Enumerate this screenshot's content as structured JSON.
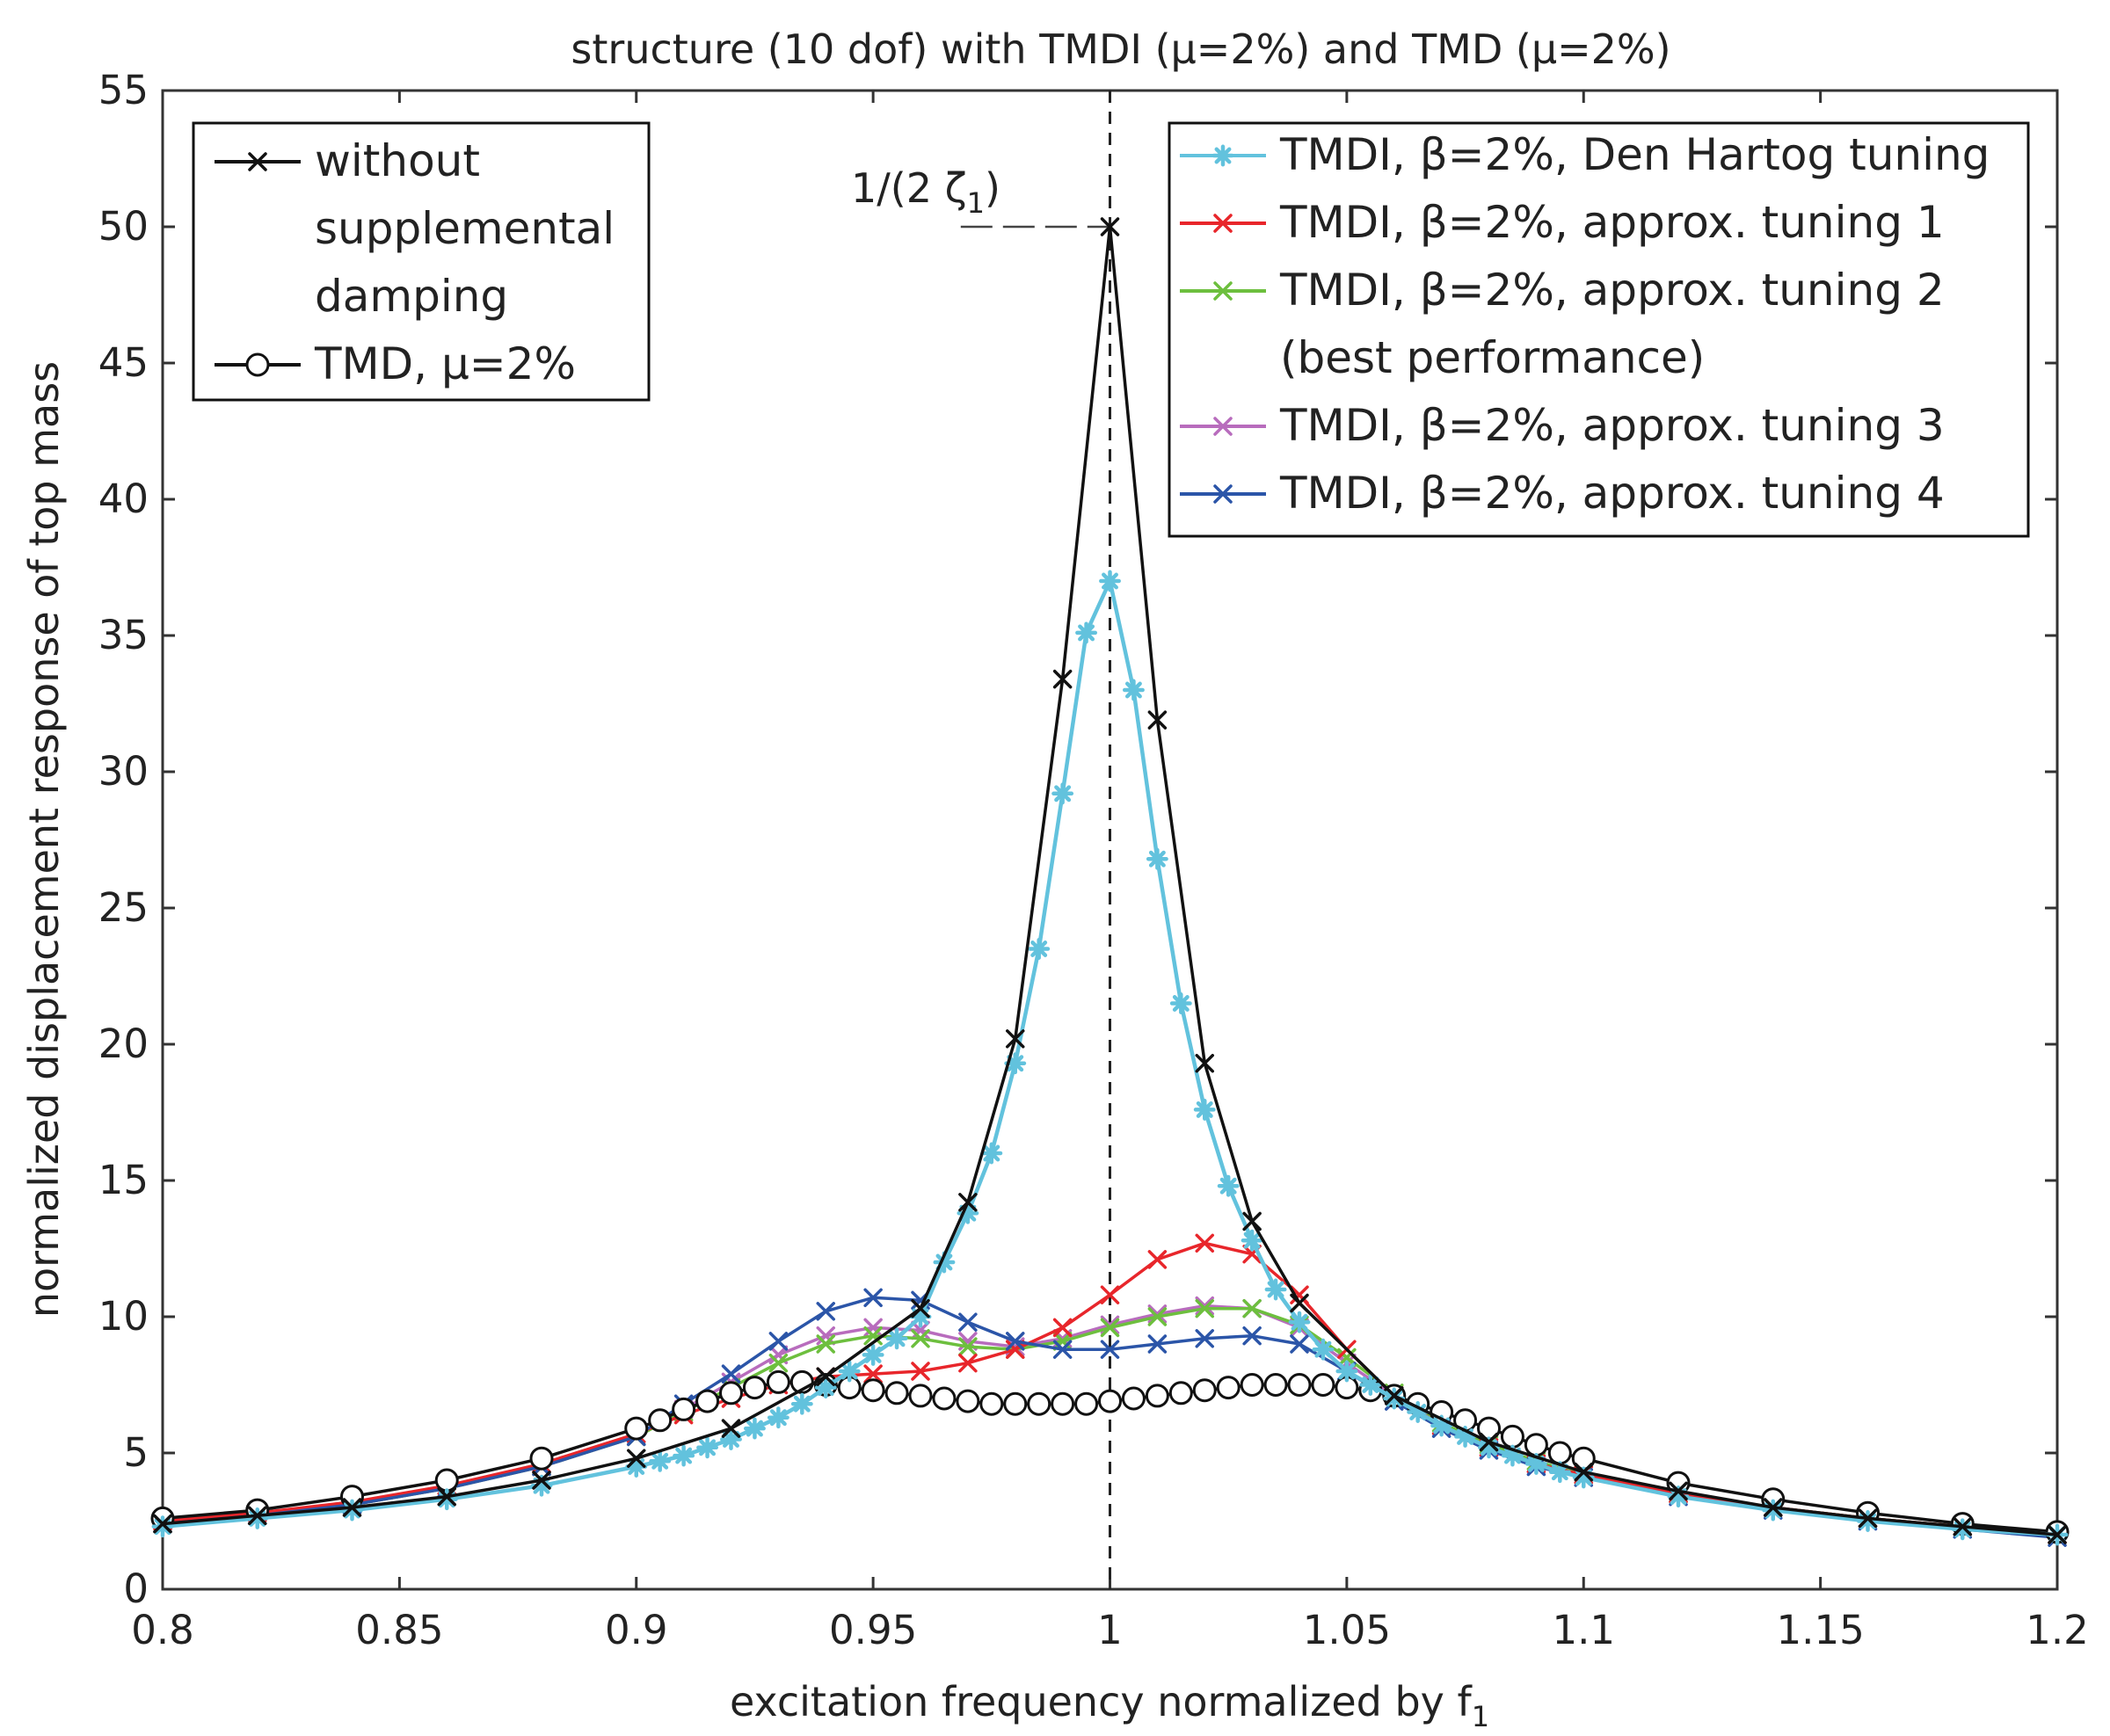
{
  "chart_data": {
    "type": "line",
    "title": "structure (10 dof) with TMDI (μ=2%) and TMD (μ=2%)",
    "xlabel": "excitation frequency normalized by f",
    "xlabel_subscript": "1",
    "ylabel": "normalized displacement response of top mass",
    "xlim": [
      0.8,
      1.2
    ],
    "ylim": [
      0,
      55
    ],
    "xticks": [
      "0.8",
      "0.85",
      "0.9",
      "0.95",
      "1",
      "1.05",
      "1.1",
      "1.15",
      "1.2"
    ],
    "yticks": [
      "0",
      "5",
      "10",
      "15",
      "20",
      "25",
      "30",
      "35",
      "40",
      "45",
      "50",
      "55"
    ],
    "annotation": {
      "text": "1/(2 ζ",
      "subscript": "1",
      "suffix": ")",
      "x": 1.0,
      "y": 50
    },
    "vertical_reference_x": 1.0,
    "legend_left": [
      {
        "series_index": 0,
        "lines": [
          "without",
          "supplemental",
          "damping"
        ]
      },
      {
        "series_index": 1,
        "lines": [
          "TMD, μ=2%"
        ]
      }
    ],
    "legend_right": [
      {
        "series_index": 2,
        "lines": [
          "TMDI, β=2%, Den Hartog tuning"
        ]
      },
      {
        "series_index": 3,
        "lines": [
          "TMDI, β=2%, approx. tuning 1"
        ]
      },
      {
        "series_index": 4,
        "lines": [
          "TMDI, β=2%, approx. tuning 2",
          "(best performance)"
        ]
      },
      {
        "series_index": 5,
        "lines": [
          "TMDI, β=2%, approx. tuning 3"
        ]
      },
      {
        "series_index": 6,
        "lines": [
          "TMDI, β=2%, approx. tuning 4"
        ]
      }
    ],
    "series": [
      {
        "name": "without supplemental damping",
        "color": "#111111",
        "marker": "x",
        "x": [
          0.8,
          0.82,
          0.84,
          0.86,
          0.88,
          0.9,
          0.92,
          0.94,
          0.96,
          0.97,
          0.98,
          0.99,
          1.0,
          1.01,
          1.02,
          1.03,
          1.04,
          1.06,
          1.08,
          1.1,
          1.12,
          1.14,
          1.16,
          1.18,
          1.2
        ],
        "y": [
          2.4,
          2.7,
          3.0,
          3.4,
          4.0,
          4.8,
          5.9,
          7.8,
          10.3,
          14.2,
          20.2,
          33.4,
          50.0,
          31.9,
          19.3,
          13.5,
          10.5,
          7.1,
          5.4,
          4.3,
          3.6,
          3.0,
          2.6,
          2.3,
          2.0
        ]
      },
      {
        "name": "TMD, μ=2%",
        "color": "#111111",
        "marker": "o",
        "x": [
          0.8,
          0.82,
          0.84,
          0.86,
          0.88,
          0.9,
          0.905,
          0.91,
          0.915,
          0.92,
          0.925,
          0.93,
          0.935,
          0.94,
          0.945,
          0.95,
          0.955,
          0.96,
          0.965,
          0.97,
          0.975,
          0.98,
          0.985,
          0.99,
          0.995,
          1.0,
          1.005,
          1.01,
          1.015,
          1.02,
          1.025,
          1.03,
          1.035,
          1.04,
          1.045,
          1.05,
          1.055,
          1.06,
          1.065,
          1.07,
          1.075,
          1.08,
          1.085,
          1.09,
          1.095,
          1.1,
          1.12,
          1.14,
          1.16,
          1.18,
          1.2
        ],
        "y": [
          2.6,
          2.9,
          3.4,
          4.0,
          4.8,
          5.9,
          6.2,
          6.6,
          6.9,
          7.2,
          7.4,
          7.6,
          7.6,
          7.5,
          7.4,
          7.3,
          7.2,
          7.1,
          7.0,
          6.9,
          6.8,
          6.8,
          6.8,
          6.8,
          6.8,
          6.9,
          7.0,
          7.1,
          7.2,
          7.3,
          7.4,
          7.5,
          7.5,
          7.5,
          7.5,
          7.4,
          7.3,
          7.1,
          6.8,
          6.5,
          6.2,
          5.9,
          5.6,
          5.3,
          5.0,
          4.8,
          3.9,
          3.3,
          2.8,
          2.4,
          2.1
        ]
      },
      {
        "name": "TMDI, β=2%, Den Hartog tuning",
        "color": "#62c2dd",
        "marker": "*",
        "x": [
          0.8,
          0.82,
          0.84,
          0.86,
          0.88,
          0.9,
          0.905,
          0.91,
          0.915,
          0.92,
          0.925,
          0.93,
          0.935,
          0.94,
          0.945,
          0.95,
          0.955,
          0.96,
          0.965,
          0.97,
          0.975,
          0.98,
          0.985,
          0.99,
          0.995,
          1.0,
          1.005,
          1.01,
          1.015,
          1.02,
          1.025,
          1.03,
          1.035,
          1.04,
          1.045,
          1.05,
          1.055,
          1.06,
          1.065,
          1.07,
          1.075,
          1.08,
          1.085,
          1.09,
          1.095,
          1.1,
          1.12,
          1.14,
          1.16,
          1.18,
          1.2
        ],
        "y": [
          2.3,
          2.6,
          2.9,
          3.3,
          3.8,
          4.5,
          4.7,
          4.9,
          5.2,
          5.5,
          5.9,
          6.3,
          6.8,
          7.4,
          8.0,
          8.6,
          9.2,
          10.0,
          12.0,
          13.8,
          16.0,
          19.3,
          23.5,
          29.2,
          35.1,
          37.0,
          33.0,
          26.8,
          21.5,
          17.6,
          14.8,
          12.8,
          11.0,
          9.8,
          8.8,
          8.0,
          7.5,
          7.0,
          6.5,
          6.0,
          5.6,
          5.2,
          4.9,
          4.6,
          4.3,
          4.1,
          3.4,
          2.9,
          2.5,
          2.2,
          2.0
        ]
      },
      {
        "name": "TMDI, β=2%, approx. tuning 1",
        "color": "#e8262b",
        "marker": "x",
        "x": [
          0.8,
          0.82,
          0.84,
          0.86,
          0.88,
          0.9,
          0.91,
          0.92,
          0.93,
          0.94,
          0.95,
          0.96,
          0.97,
          0.98,
          0.99,
          1.0,
          1.01,
          1.02,
          1.03,
          1.04,
          1.05,
          1.06,
          1.07,
          1.08,
          1.09,
          1.1,
          1.12,
          1.14,
          1.16,
          1.18,
          1.2
        ],
        "y": [
          2.5,
          2.8,
          3.2,
          3.8,
          4.6,
          5.7,
          6.4,
          7.0,
          7.5,
          7.8,
          7.9,
          8.0,
          8.3,
          8.8,
          9.6,
          10.8,
          12.1,
          12.7,
          12.3,
          10.8,
          8.8,
          7.1,
          6.0,
          5.2,
          4.6,
          4.2,
          3.5,
          3.0,
          2.6,
          2.3,
          2.0
        ]
      },
      {
        "name": "TMDI, β=2%, approx. tuning 2 (best performance)",
        "color": "#6dbf3e",
        "marker": "x",
        "x": [
          0.8,
          0.82,
          0.84,
          0.86,
          0.88,
          0.9,
          0.91,
          0.92,
          0.93,
          0.94,
          0.95,
          0.96,
          0.97,
          0.98,
          0.99,
          1.0,
          1.01,
          1.02,
          1.03,
          1.04,
          1.05,
          1.06,
          1.07,
          1.08,
          1.09,
          1.1,
          1.12,
          1.14,
          1.16,
          1.18,
          1.2
        ],
        "y": [
          2.4,
          2.7,
          3.1,
          3.7,
          4.5,
          5.6,
          6.5,
          7.4,
          8.3,
          9.0,
          9.3,
          9.2,
          8.9,
          8.8,
          9.1,
          9.6,
          10.0,
          10.3,
          10.3,
          9.7,
          8.5,
          7.2,
          6.1,
          5.3,
          4.7,
          4.2,
          3.5,
          3.0,
          2.6,
          2.3,
          2.0
        ]
      },
      {
        "name": "TMDI, β=2%, approx. tuning 3",
        "color": "#b86cbd",
        "marker": "x",
        "x": [
          0.8,
          0.82,
          0.84,
          0.86,
          0.88,
          0.9,
          0.91,
          0.92,
          0.93,
          0.94,
          0.95,
          0.96,
          0.97,
          0.98,
          0.99,
          1.0,
          1.01,
          1.02,
          1.03,
          1.04,
          1.05,
          1.06,
          1.07,
          1.08,
          1.09,
          1.1,
          1.12,
          1.14,
          1.16,
          1.18,
          1.2
        ],
        "y": [
          2.4,
          2.7,
          3.1,
          3.7,
          4.5,
          5.6,
          6.6,
          7.6,
          8.6,
          9.3,
          9.6,
          9.5,
          9.1,
          8.9,
          9.2,
          9.7,
          10.1,
          10.4,
          10.3,
          9.6,
          8.3,
          7.1,
          6.0,
          5.2,
          4.6,
          4.2,
          3.5,
          3.0,
          2.6,
          2.3,
          2.0
        ]
      },
      {
        "name": "TMDI, β=2%, approx. tuning 4",
        "color": "#2b55a8",
        "marker": "x",
        "x": [
          0.8,
          0.82,
          0.84,
          0.86,
          0.88,
          0.9,
          0.91,
          0.92,
          0.93,
          0.94,
          0.95,
          0.96,
          0.97,
          0.98,
          0.99,
          1.0,
          1.01,
          1.02,
          1.03,
          1.04,
          1.05,
          1.06,
          1.07,
          1.08,
          1.09,
          1.1,
          1.12,
          1.14,
          1.16,
          1.18,
          1.2
        ],
        "y": [
          2.4,
          2.7,
          3.1,
          3.7,
          4.5,
          5.6,
          6.8,
          7.9,
          9.1,
          10.2,
          10.7,
          10.6,
          9.8,
          9.1,
          8.8,
          8.8,
          9.0,
          9.2,
          9.3,
          9.0,
          8.0,
          6.9,
          5.9,
          5.1,
          4.5,
          4.1,
          3.4,
          2.9,
          2.5,
          2.2,
          1.9
        ]
      }
    ]
  }
}
